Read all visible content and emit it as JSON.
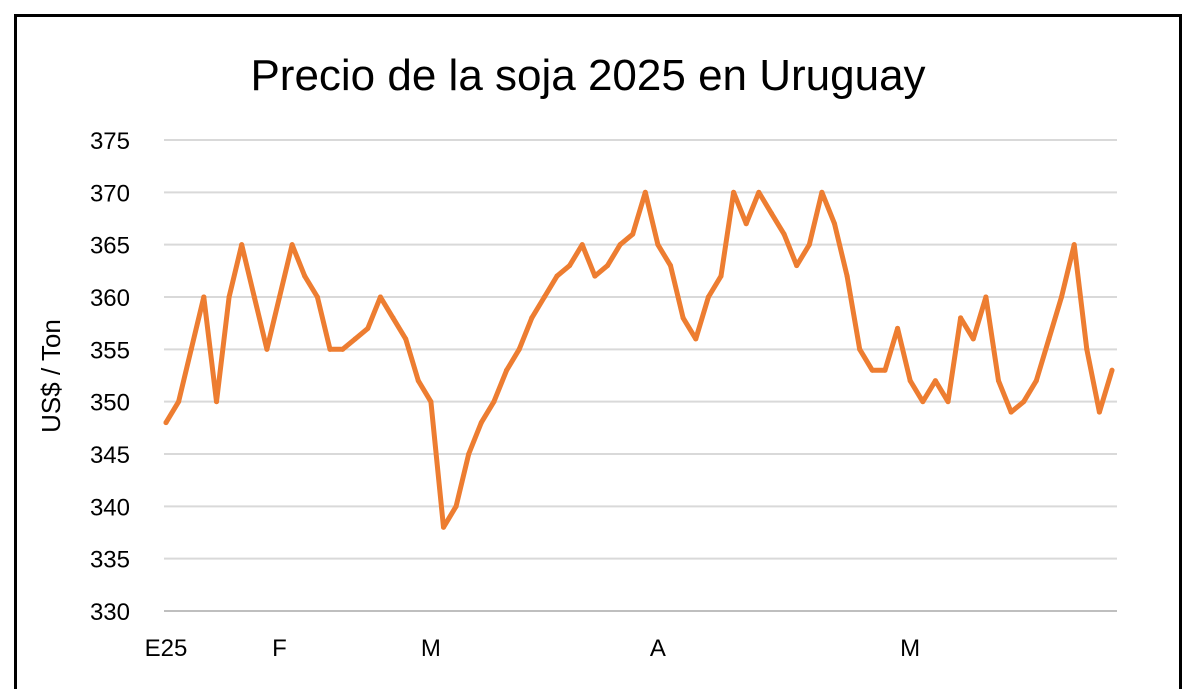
{
  "chart_data": {
    "type": "line",
    "title": "Precio de la soja 2025 en Uruguay",
    "xlabel": "",
    "ylabel": "US$ / Ton",
    "ylim": [
      330,
      375
    ],
    "yticks": [
      330,
      335,
      340,
      345,
      350,
      355,
      360,
      365,
      370,
      375
    ],
    "x_tick_labels": [
      {
        "label": "E25",
        "index": 0
      },
      {
        "label": "F",
        "index": 9
      },
      {
        "label": "M",
        "index": 21
      },
      {
        "label": "A",
        "index": 39
      },
      {
        "label": "M",
        "index": 59
      }
    ],
    "grid": true,
    "legend": "none",
    "line_color": "#ED7D31",
    "series": [
      {
        "values": [
          348,
          350,
          355,
          360,
          350,
          360,
          365,
          360,
          355,
          360,
          365,
          362,
          360,
          355,
          355,
          356,
          357,
          360,
          358,
          356,
          352,
          350,
          338,
          340,
          345,
          348,
          350,
          353,
          355,
          358,
          360,
          362,
          363,
          365,
          362,
          363,
          365,
          366,
          370,
          365,
          363,
          358,
          356,
          360,
          362,
          370,
          367,
          370,
          368,
          366,
          363,
          365,
          370,
          367,
          362,
          355,
          353,
          353,
          357,
          352,
          350,
          352,
          350,
          358,
          356,
          360,
          352,
          349,
          350,
          352,
          356,
          360,
          365,
          355,
          349,
          353
        ]
      }
    ]
  }
}
